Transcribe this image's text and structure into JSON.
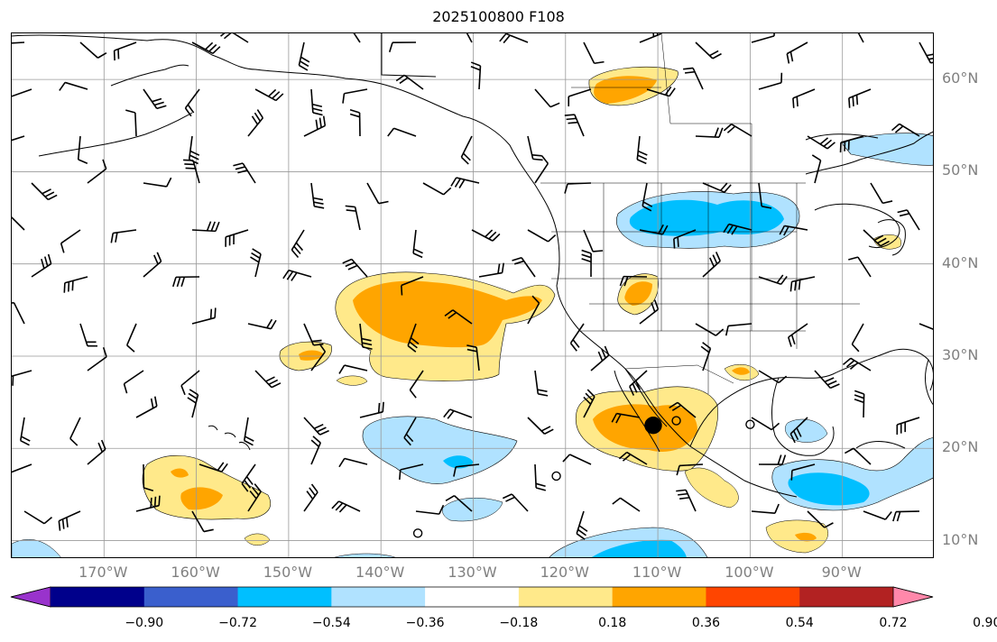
{
  "title": "2025100800 F108",
  "lat_labels": [
    {
      "text": "60°N",
      "lat": 60
    },
    {
      "text": "50°N",
      "lat": 50
    },
    {
      "text": "40°N",
      "lat": 40
    },
    {
      "text": "30°N",
      "lat": 30
    },
    {
      "text": "20°N",
      "lat": 20
    },
    {
      "text": "10°N",
      "lat": 10
    }
  ],
  "lon_labels": [
    {
      "text": "170°W",
      "lon": -170
    },
    {
      "text": "160°W",
      "lon": -160
    },
    {
      "text": "150°W",
      "lon": -150
    },
    {
      "text": "140°W",
      "lon": -140
    },
    {
      "text": "130°W",
      "lon": -130
    },
    {
      "text": "120°W",
      "lon": -120
    },
    {
      "text": "110°W",
      "lon": -110
    },
    {
      "text": "100°W",
      "lon": -100
    },
    {
      "text": "90°W",
      "lon": -90
    }
  ],
  "extent": {
    "lon_min": -180,
    "lon_max": -80,
    "lat_min": 8,
    "lat_max": 65
  },
  "colorbar": {
    "ticks": [
      "−0.90",
      "−0.72",
      "−0.54",
      "−0.36",
      "−0.18",
      "0.18",
      "0.36",
      "0.54",
      "0.72",
      "0.90"
    ],
    "colors": [
      "#9933cc",
      "#00008b",
      "#3a5fcd",
      "#00bfff",
      "#b0e2ff",
      "#ffffff",
      "#ffe98a",
      "#ffa500",
      "#ff4500",
      "#b22222",
      "#ff88aa"
    ],
    "extend_min_color": "#9933cc",
    "extend_max_color": "#ff88aa"
  },
  "colors": {
    "grid": "#999999",
    "coast": "#000000",
    "label_gray": "#808080"
  },
  "markers": [
    {
      "name": "large-dot-marker",
      "lon": -110.5,
      "lat": 22.5,
      "filled": true
    },
    {
      "name": "circle-marker-1",
      "lon": -108.0,
      "lat": 23.0,
      "filled": false
    },
    {
      "name": "circle-marker-2",
      "lon": -100.0,
      "lat": 22.6,
      "filled": false
    },
    {
      "name": "circle-marker-3",
      "lon": -121.0,
      "lat": 17.0,
      "filled": false
    },
    {
      "name": "circle-marker-4",
      "lon": -136.0,
      "lat": 10.8,
      "filled": false
    }
  ]
}
